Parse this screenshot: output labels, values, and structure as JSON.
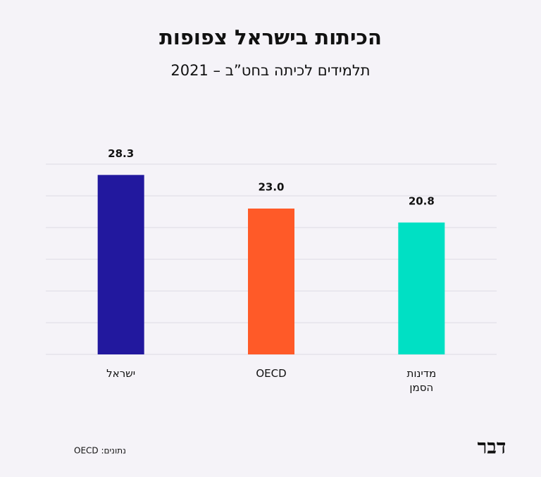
{
  "chart_data": {
    "type": "bar",
    "title": "הכיתות בישראל צפופות",
    "subtitle": "תלמידים לכיתה בחט”ב – 2021",
    "categories": [
      "ישראל",
      "OECD",
      "מדינות הסמן"
    ],
    "values": [
      28.3,
      23.0,
      20.8
    ],
    "value_labels": [
      "28.3",
      "23.0",
      "20.8"
    ],
    "colors": [
      "#22189e",
      "#ff5a28",
      "#00e0c4"
    ],
    "ylim": [
      0,
      30
    ],
    "yticks": [
      0,
      5,
      10,
      15,
      20,
      25,
      30
    ],
    "grid": true,
    "source": "נתונים: OECD",
    "logo": "דבר"
  }
}
